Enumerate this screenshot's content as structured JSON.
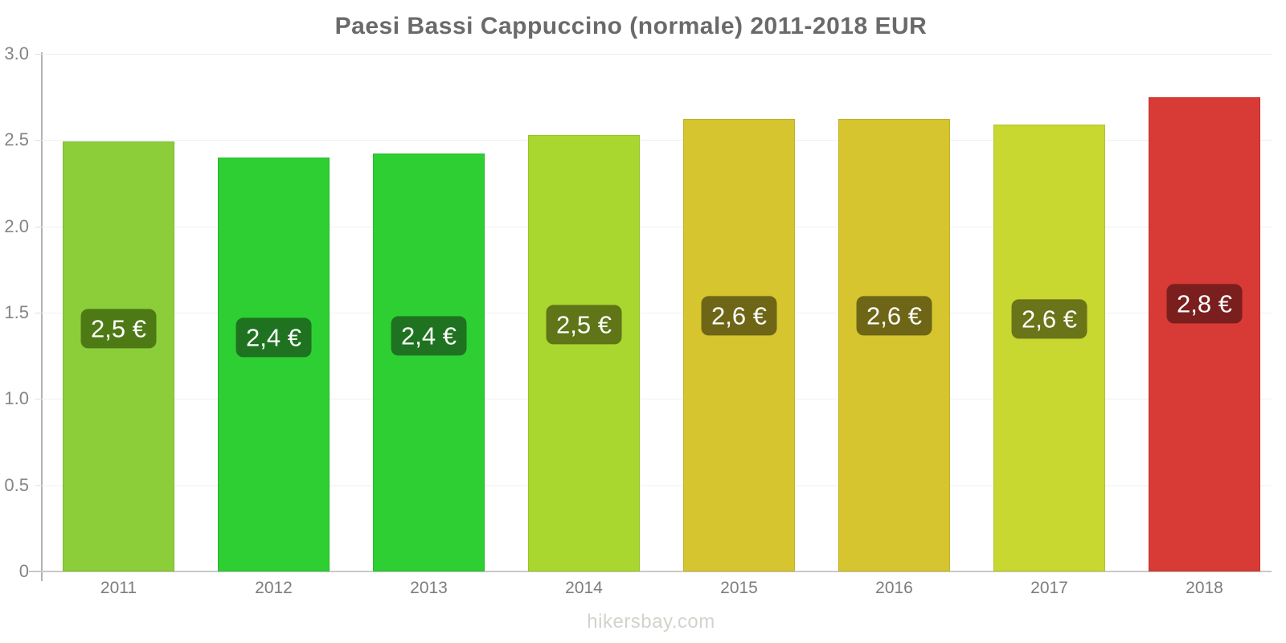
{
  "chart_data": {
    "type": "bar",
    "title": "Paesi Bassi Cappuccino (normale) 2011-2018 EUR",
    "currency": "EUR",
    "categories": [
      "2011",
      "2012",
      "2013",
      "2014",
      "2015",
      "2016",
      "2017",
      "2018"
    ],
    "values": [
      2.49,
      2.4,
      2.42,
      2.53,
      2.62,
      2.62,
      2.59,
      2.75
    ],
    "bar_labels": [
      "2,5 €",
      "2,4 €",
      "2,4 €",
      "2,5 €",
      "2,6 €",
      "2,6 €",
      "2,6 €",
      "2,8 €"
    ],
    "bar_colors": [
      "#8CCE3A",
      "#2ECF33",
      "#2ECF33",
      "#A9D72F",
      "#D7C52F",
      "#D7C52F",
      "#C9D731",
      "#D83A35"
    ],
    "badge_colors": [
      "#4D7A15",
      "#1F7320",
      "#1F7320",
      "#5F7518",
      "#6E6616",
      "#6E6616",
      "#6A7419",
      "#7A1F1D"
    ],
    "xlabel": "",
    "ylabel": "",
    "ylim": [
      0,
      3
    ],
    "yticks": [
      0,
      0.5,
      1,
      1.5,
      2,
      2.5,
      3
    ],
    "ytick_labels": [
      "0",
      "0.5",
      "1.0",
      "1.5",
      "2.0",
      "2.5",
      "3.0"
    ],
    "grid": true,
    "legend": false
  },
  "footer": {
    "text": "hikersbay.com"
  },
  "colors": {
    "title_text": "#6a6a6a",
    "axis_tick_text": "#858585",
    "x_tick_text": "#7d7d7d",
    "gridline": "#f0f0f0",
    "y_axis_line": "#b3b3b3",
    "x_baseline": "#c9c9c9",
    "badge_text": "#ffffff",
    "footer_text": "#d4d2cc",
    "background": "#ffffff"
  }
}
